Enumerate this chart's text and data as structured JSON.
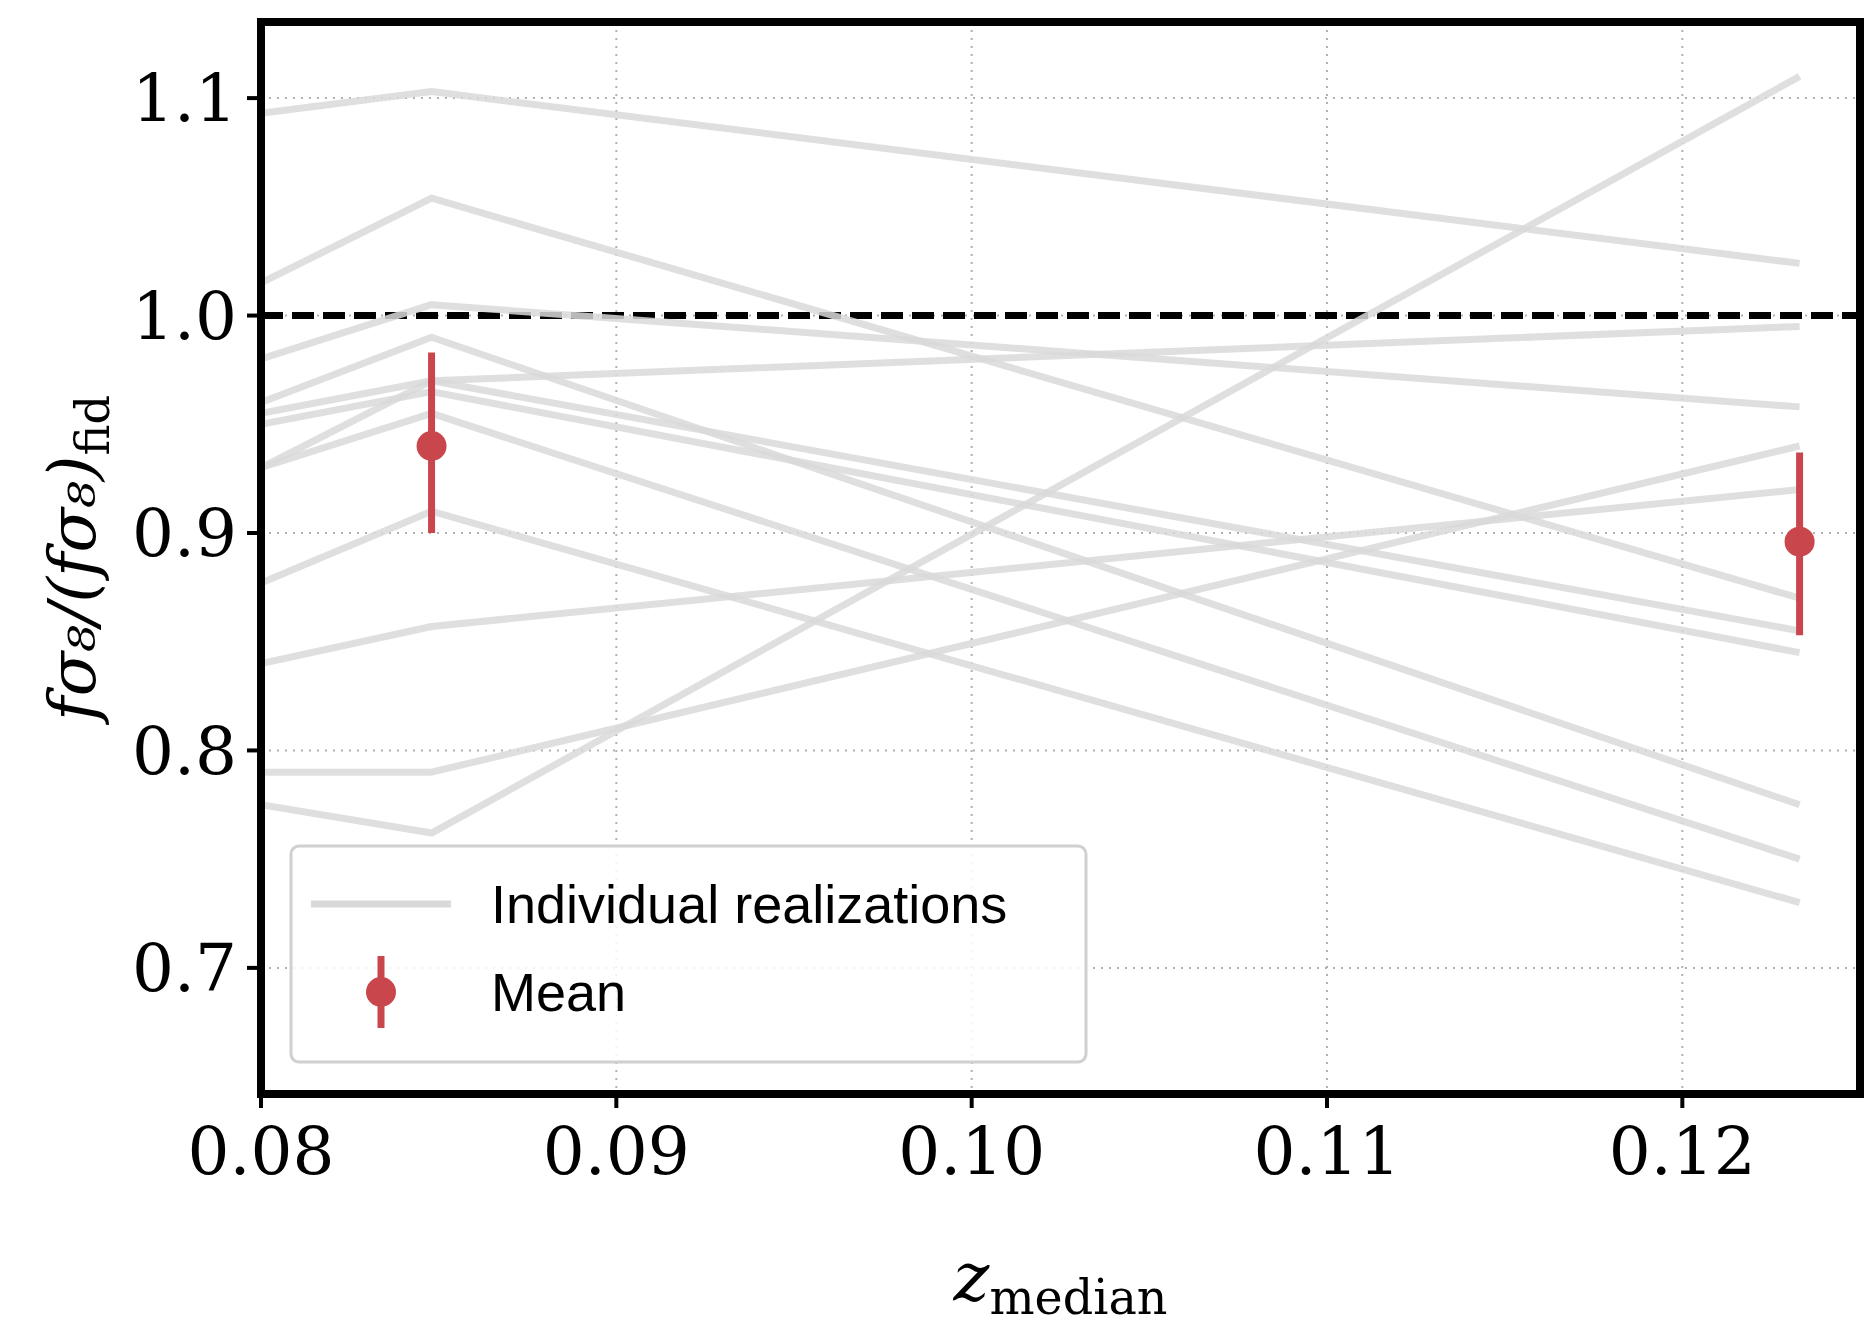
{
  "chart_data": {
    "type": "line",
    "xlabel": "z$_{median}$",
    "ylabel": "fσ₈/(fσ₈)$_{fid}$",
    "xlim": [
      0.08,
      0.125
    ],
    "ylim": [
      0.642,
      1.135
    ],
    "xticks": [
      0.08,
      0.09,
      {
        "value": 0.1,
        "label": "0.10"
      },
      0.11,
      0.12
    ],
    "yticks": [
      0.7,
      0.8,
      0.9,
      {
        "value": 1,
        "label": "1.0"
      },
      1.1
    ],
    "grid": true,
    "legend": "bottom left",
    "ref_lines": [
      {
        "axis": "y",
        "value": 1,
        "color": "#000000",
        "line_style": "dashed"
      }
    ],
    "series": [
      {
        "name": "Individual realizations",
        "color": "#d9d9d9",
        "x": [
          0.08,
          0.0848,
          0.1233
        ],
        "values": [
          1.093,
          1.103,
          1.024
        ]
      },
      {
        "type": "line",
        "color": "#d9d9d9",
        "x": [
          0.08,
          0.0848,
          0.1233
        ],
        "values": [
          1.015,
          1.054,
          0.87
        ]
      },
      {
        "type": "line",
        "color": "#d9d9d9",
        "x": [
          0.08,
          0.0848,
          0.1233
        ],
        "values": [
          0.98,
          1.005,
          0.958
        ]
      },
      {
        "type": "line",
        "color": "#d9d9d9",
        "x": [
          0.08,
          0.0848,
          0.1233
        ],
        "values": [
          0.96,
          0.99,
          0.775
        ]
      },
      {
        "type": "line",
        "color": "#d9d9d9",
        "x": [
          0.08,
          0.0848,
          0.1233
        ],
        "values": [
          0.955,
          0.97,
          0.995
        ]
      },
      {
        "type": "line",
        "color": "#d9d9d9",
        "x": [
          0.08,
          0.0848,
          0.1233
        ],
        "values": [
          0.93,
          0.97,
          0.855
        ]
      },
      {
        "type": "line",
        "color": "#d9d9d9",
        "x": [
          0.08,
          0.0848,
          0.1233
        ],
        "values": [
          0.93,
          0.955,
          0.75
        ]
      },
      {
        "type": "line",
        "color": "#d9d9d9",
        "x": [
          0.08,
          0.0848,
          0.1233
        ],
        "values": [
          0.877,
          0.91,
          0.73
        ]
      },
      {
        "type": "line",
        "color": "#d9d9d9",
        "x": [
          0.08,
          0.0848,
          0.1233
        ],
        "values": [
          0.95,
          0.965,
          0.845
        ]
      },
      {
        "type": "line",
        "color": "#d9d9d9",
        "x": [
          0.08,
          0.0848,
          0.1233
        ],
        "values": [
          0.84,
          0.857,
          0.92
        ]
      },
      {
        "type": "line",
        "color": "#d9d9d9",
        "x": [
          0.08,
          0.0848,
          0.1233
        ],
        "values": [
          0.79,
          0.79,
          0.94
        ]
      },
      {
        "type": "line",
        "color": "#d9d9d9",
        "x": [
          0.08,
          0.0848,
          0.1233
        ],
        "values": [
          0.775,
          0.762,
          1.11
        ]
      },
      {
        "name": "Mean",
        "type": "scatter",
        "marker": "circle",
        "color": "#c9474c",
        "x": [
          0.0848,
          0.1233
        ],
        "values": [
          0.94,
          0.896
        ],
        "errors": [
          [
            0.9,
            0.983
          ],
          [
            0.853,
            0.937
          ]
        ]
      }
    ]
  }
}
